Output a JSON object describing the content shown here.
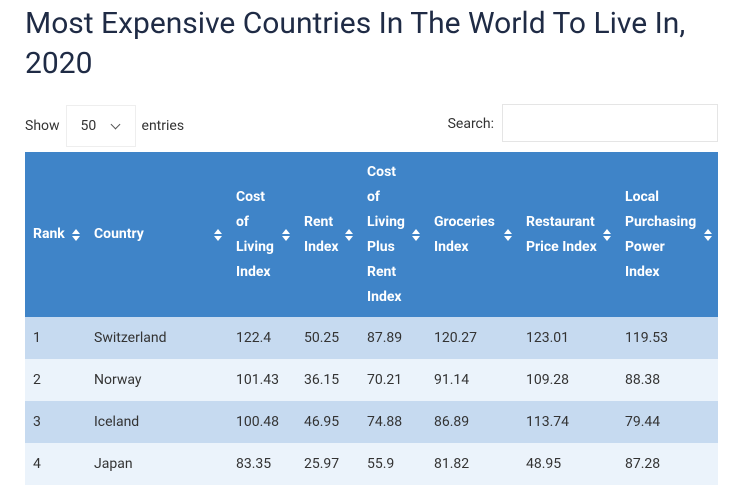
{
  "header": {
    "title": "Most Expensive Countries In The World To Live In, 2020"
  },
  "controls": {
    "show_label": "Show",
    "page_size": "50",
    "entries_label": "entries",
    "search_label": "Search:"
  },
  "table": {
    "columns": [
      "Rank",
      "Country",
      "Cost of Living Index",
      "Rent Index",
      "Cost of Living Plus Rent Index",
      "Groceries Index",
      "Restaurant Price Index",
      "Local Purchasing Power Index"
    ],
    "rows": [
      [
        1,
        "Switzerland",
        122.4,
        50.25,
        87.89,
        120.27,
        123.01,
        119.53
      ],
      [
        2,
        "Norway",
        101.43,
        36.15,
        70.21,
        91.14,
        109.28,
        88.38
      ],
      [
        3,
        "Iceland",
        100.48,
        46.95,
        74.88,
        86.89,
        113.74,
        79.44
      ],
      [
        4,
        "Japan",
        83.35,
        25.97,
        55.9,
        81.82,
        48.95,
        87.28
      ]
    ]
  }
}
